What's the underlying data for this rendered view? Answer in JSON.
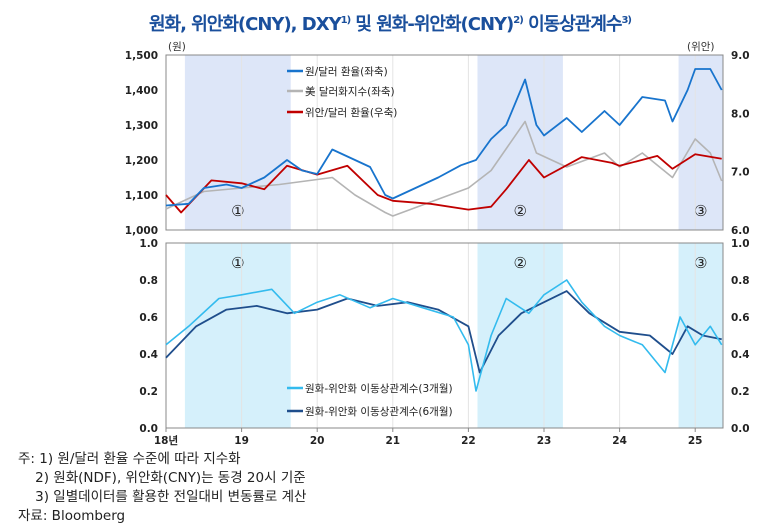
{
  "title": {
    "main": "원화, 위안화(CNY), DXY",
    "s1": "1)",
    "mid": " 및 원화-위안화(CNY)",
    "s2": "2)",
    "end": " 이동상관계수",
    "s3": "3)"
  },
  "notes": [
    "주: 1) 원/달러 환율 수준에 따라 지수화",
    "    2) 원화(NDF), 위안화(CNY)는 동경 20시 기준",
    "    3) 일별데이터를 활용한 전일대비 변동률로 계산",
    "자료: Bloomberg"
  ],
  "colors": {
    "krw": "#1874cd",
    "dxy": "#b4b4b4",
    "cny": "#c00000",
    "corr3": "#33bbee",
    "corr6": "#1f4e8c",
    "shade_top": "#dde6f8",
    "shade_bottom": "#d5f0fb"
  },
  "chart_data": [
    {
      "type": "line",
      "left_unit": "(원)",
      "right_unit": "(위안)",
      "ylim_left": [
        1000,
        1500
      ],
      "ylim_right": [
        6.0,
        9.0
      ],
      "left_ticks": [
        "1,000",
        "1,100",
        "1,200",
        "1,300",
        "1,400",
        "1,500"
      ],
      "right_ticks": [
        "6.0",
        "7.0",
        "8.0",
        "9.0"
      ],
      "shaded_periods": [
        {
          "label": "①",
          "from": 2018.25,
          "to": 2019.65
        },
        {
          "label": "②",
          "from": 2022.12,
          "to": 2023.25
        },
        {
          "label": "③",
          "from": 2024.78,
          "to": 2025.4
        }
      ],
      "series": [
        {
          "name": "원/달러 환율(좌축)",
          "axis": "left",
          "x": [
            2018.0,
            2018.3,
            2018.5,
            2018.8,
            2019.0,
            2019.3,
            2019.6,
            2019.8,
            2020.0,
            2020.2,
            2020.5,
            2020.7,
            2020.9,
            2021.0,
            2021.3,
            2021.6,
            2021.9,
            2022.1,
            2022.3,
            2022.5,
            2022.75,
            2022.9,
            2023.0,
            2023.3,
            2023.5,
            2023.8,
            2024.0,
            2024.3,
            2024.6,
            2024.7,
            2024.9,
            2025.0,
            2025.2,
            2025.35
          ],
          "y": [
            1070,
            1075,
            1120,
            1130,
            1120,
            1150,
            1200,
            1170,
            1160,
            1230,
            1200,
            1180,
            1100,
            1090,
            1120,
            1150,
            1185,
            1200,
            1260,
            1300,
            1430,
            1300,
            1270,
            1320,
            1280,
            1340,
            1300,
            1380,
            1370,
            1310,
            1400,
            1460,
            1460,
            1400
          ]
        },
        {
          "name": "美 달러화지수(좌축)",
          "axis": "left",
          "x": [
            2018.0,
            2018.5,
            2019.0,
            2019.5,
            2020.2,
            2020.5,
            2020.9,
            2021.0,
            2021.5,
            2022.0,
            2022.3,
            2022.75,
            2022.9,
            2023.3,
            2023.8,
            2024.0,
            2024.3,
            2024.7,
            2025.0,
            2025.2,
            2025.35
          ],
          "y": [
            1060,
            1110,
            1120,
            1130,
            1150,
            1100,
            1050,
            1040,
            1080,
            1120,
            1170,
            1310,
            1220,
            1180,
            1220,
            1180,
            1220,
            1150,
            1260,
            1220,
            1140
          ]
        },
        {
          "name": "위안/달러 환율(우축)",
          "axis": "right",
          "x": [
            2018.0,
            2018.2,
            2018.6,
            2019.0,
            2019.3,
            2019.6,
            2020.0,
            2020.4,
            2020.8,
            2021.0,
            2021.5,
            2022.0,
            2022.3,
            2022.5,
            2022.8,
            2023.0,
            2023.5,
            2023.9,
            2024.0,
            2024.5,
            2024.7,
            2025.0,
            2025.35
          ],
          "y": [
            6.6,
            6.3,
            6.85,
            6.8,
            6.7,
            7.1,
            6.95,
            7.1,
            6.6,
            6.5,
            6.45,
            6.35,
            6.4,
            6.7,
            7.2,
            6.9,
            7.25,
            7.15,
            7.1,
            7.27,
            7.05,
            7.3,
            7.22
          ]
        }
      ]
    },
    {
      "type": "line",
      "ylim": [
        0.0,
        1.0
      ],
      "ticks": [
        "0.0",
        "0.2",
        "0.4",
        "0.6",
        "0.8",
        "1.0"
      ],
      "x_ticks": [
        "18년",
        "19",
        "20",
        "21",
        "22",
        "23",
        "24",
        "25"
      ],
      "shaded_periods": [
        {
          "label": "①",
          "from": 2018.25,
          "to": 2019.65
        },
        {
          "label": "②",
          "from": 2022.12,
          "to": 2023.25
        },
        {
          "label": "③",
          "from": 2024.78,
          "to": 2025.4
        }
      ],
      "series": [
        {
          "name": "원화-위안화 이동상관계수(3개월)",
          "x": [
            2018.0,
            2018.3,
            2018.7,
            2019.0,
            2019.4,
            2019.7,
            2020.0,
            2020.3,
            2020.7,
            2021.0,
            2021.4,
            2021.8,
            2022.0,
            2022.1,
            2022.3,
            2022.5,
            2022.8,
            2023.0,
            2023.3,
            2023.5,
            2023.8,
            2024.0,
            2024.3,
            2024.6,
            2024.8,
            2025.0,
            2025.2,
            2025.35
          ],
          "y": [
            0.45,
            0.55,
            0.7,
            0.72,
            0.75,
            0.62,
            0.68,
            0.72,
            0.65,
            0.7,
            0.65,
            0.6,
            0.45,
            0.2,
            0.5,
            0.7,
            0.62,
            0.72,
            0.8,
            0.68,
            0.55,
            0.5,
            0.45,
            0.3,
            0.6,
            0.45,
            0.55,
            0.45
          ]
        },
        {
          "name": "원화-위안화 이동상관계수(6개월)",
          "x": [
            2018.0,
            2018.4,
            2018.8,
            2019.2,
            2019.6,
            2020.0,
            2020.4,
            2020.8,
            2021.2,
            2021.6,
            2022.0,
            2022.15,
            2022.4,
            2022.7,
            2023.0,
            2023.3,
            2023.6,
            2024.0,
            2024.4,
            2024.7,
            2024.9,
            2025.1,
            2025.35
          ],
          "y": [
            0.38,
            0.55,
            0.64,
            0.66,
            0.62,
            0.64,
            0.7,
            0.66,
            0.68,
            0.64,
            0.55,
            0.3,
            0.5,
            0.62,
            0.68,
            0.74,
            0.62,
            0.52,
            0.5,
            0.4,
            0.55,
            0.5,
            0.48
          ]
        }
      ]
    }
  ]
}
